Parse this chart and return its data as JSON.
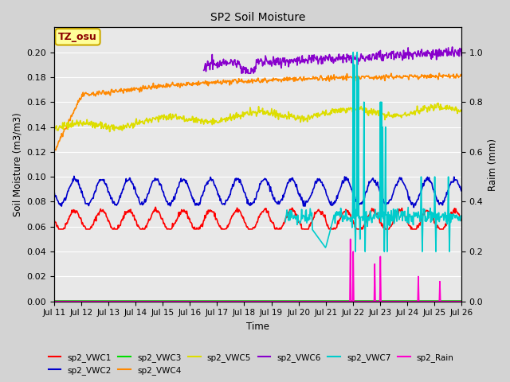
{
  "title": "SP2 Soil Moisture",
  "xlabel": "Time",
  "ylabel_left": "Soil Moisture (m3/m3)",
  "ylabel_right": "Raim (mm)",
  "ylim_left": [
    0.0,
    0.22
  ],
  "ylim_right": [
    0.0,
    1.1
  ],
  "yticks_left": [
    0.0,
    0.02,
    0.04,
    0.06,
    0.08,
    0.1,
    0.12,
    0.14,
    0.16,
    0.18,
    0.2
  ],
  "yticks_right": [
    0.0,
    0.2,
    0.4,
    0.6,
    0.8,
    1.0
  ],
  "xtick_labels": [
    "Jul 11",
    "Jul 12",
    "Jul 13",
    "Jul 14",
    "Jul 15",
    "Jul 16",
    "Jul 17",
    "Jul 18",
    "Jul 19",
    "Jul 20",
    "Jul 21",
    "Jul 22",
    "Jul 23",
    "Jul 24",
    "Jul 25",
    "Jul 26"
  ],
  "fig_bg_color": "#d3d3d3",
  "plot_bg_color": "#e8e8e8",
  "annotation_text": "TZ_osu",
  "annotation_fg": "#8b0000",
  "annotation_bg": "#ffff99",
  "annotation_border": "#ccaa00",
  "series": {
    "sp2_VWC1": {
      "color": "#ff0000",
      "lw": 1.2
    },
    "sp2_VWC2": {
      "color": "#0000cc",
      "lw": 1.2
    },
    "sp2_VWC3": {
      "color": "#00dd00",
      "lw": 1.2
    },
    "sp2_VWC4": {
      "color": "#ff8800",
      "lw": 1.2
    },
    "sp2_VWC5": {
      "color": "#dddd00",
      "lw": 1.2
    },
    "sp2_VWC6": {
      "color": "#8800cc",
      "lw": 1.2
    },
    "sp2_VWC7": {
      "color": "#00cccc",
      "lw": 1.2
    },
    "sp2_Rain": {
      "color": "#ff00cc",
      "lw": 1.2
    }
  }
}
